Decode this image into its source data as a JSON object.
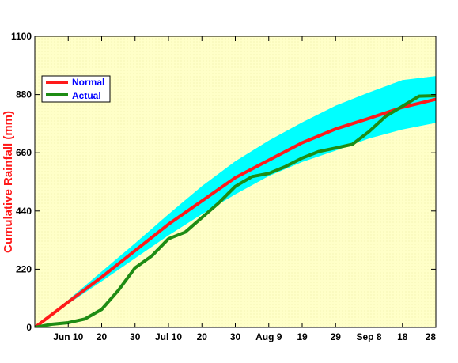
{
  "chart_data": {
    "type": "line",
    "ylabel": "Cumulative Rainfall (mm)",
    "ylim": [
      0,
      1100
    ],
    "y_ticks": [
      0,
      220,
      440,
      660,
      880,
      1100
    ],
    "x_tick_labels": [
      "Jun 10",
      "20",
      "30",
      "Jul 10",
      "20",
      "30",
      "Aug 9",
      "19",
      "29",
      "Sep 8",
      "18",
      "28"
    ],
    "x_tick_days": [
      10,
      20,
      30,
      40,
      50,
      60,
      70,
      80,
      90,
      100,
      110,
      120
    ],
    "xlim": [
      0,
      120
    ],
    "grid": false,
    "legend_position": "top-left",
    "colors": {
      "normal": "#ff1a1a",
      "actual": "#1e8c14",
      "band": "#00ffff",
      "plot_bg": "#ffffc8",
      "ylabel": "#ff1a1a",
      "legend_text": "#0000ff"
    },
    "x": [
      0,
      10,
      20,
      30,
      40,
      50,
      60,
      70,
      80,
      90,
      100,
      110,
      120
    ],
    "band_upper": [
      0,
      104,
      211,
      318,
      428,
      534,
      628,
      706,
      775,
      838,
      888,
      935,
      950
    ],
    "band_lower": [
      0,
      89,
      174,
      261,
      348,
      428,
      503,
      572,
      625,
      668,
      714,
      748,
      773
    ],
    "series": [
      {
        "name": "Normal",
        "x": [
          0,
          10,
          20,
          30,
          40,
          50,
          60,
          70,
          80,
          90,
          100,
          110,
          120
        ],
        "values": [
          0,
          96,
          190,
          290,
          390,
          478,
          566,
          632,
          698,
          750,
          790,
          832,
          862
        ]
      },
      {
        "name": "Actual",
        "x": [
          0,
          5,
          10,
          15,
          20,
          25,
          30,
          35,
          40,
          45,
          50,
          55,
          60,
          65,
          70,
          75,
          80,
          85,
          90,
          95,
          100,
          105,
          110,
          115,
          120
        ],
        "values": [
          0,
          12,
          18,
          32,
          68,
          140,
          225,
          270,
          335,
          360,
          415,
          470,
          533,
          570,
          582,
          608,
          640,
          665,
          678,
          692,
          740,
          798,
          836,
          874,
          876
        ]
      }
    ]
  }
}
